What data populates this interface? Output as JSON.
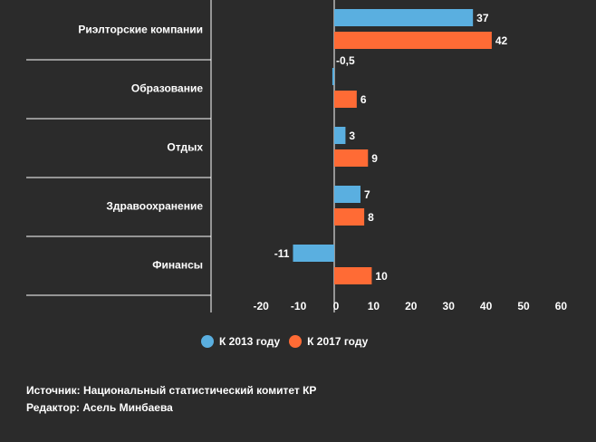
{
  "chart_data": {
    "type": "bar",
    "orientation": "horizontal",
    "categories": [
      "Риэлторские компании",
      "Образование",
      "Отдых",
      "Здравоохранение",
      "Финансы"
    ],
    "series": [
      {
        "name": "К 2013 году",
        "color": "#5aafe0",
        "values": [
          37,
          -0.5,
          3,
          7,
          -11
        ],
        "labels": [
          "37",
          "-0,5",
          "3",
          "7",
          "-11"
        ]
      },
      {
        "name": "К 2017 году",
        "color": "#ff6b35",
        "values": [
          42,
          6,
          9,
          8,
          10
        ],
        "labels": [
          "42",
          "6",
          "9",
          "8",
          "10"
        ]
      }
    ],
    "x_ticks": [
      "-20",
      "-10",
      "0",
      "10",
      "20",
      "30",
      "40",
      "50",
      "60"
    ],
    "xlim": [
      -20,
      60
    ],
    "grid": false,
    "legend_position": "bottom"
  },
  "footer": {
    "source": "Источник: Национальный статистический комитет КР",
    "editor": "Редактор: Асель Минбаева"
  }
}
